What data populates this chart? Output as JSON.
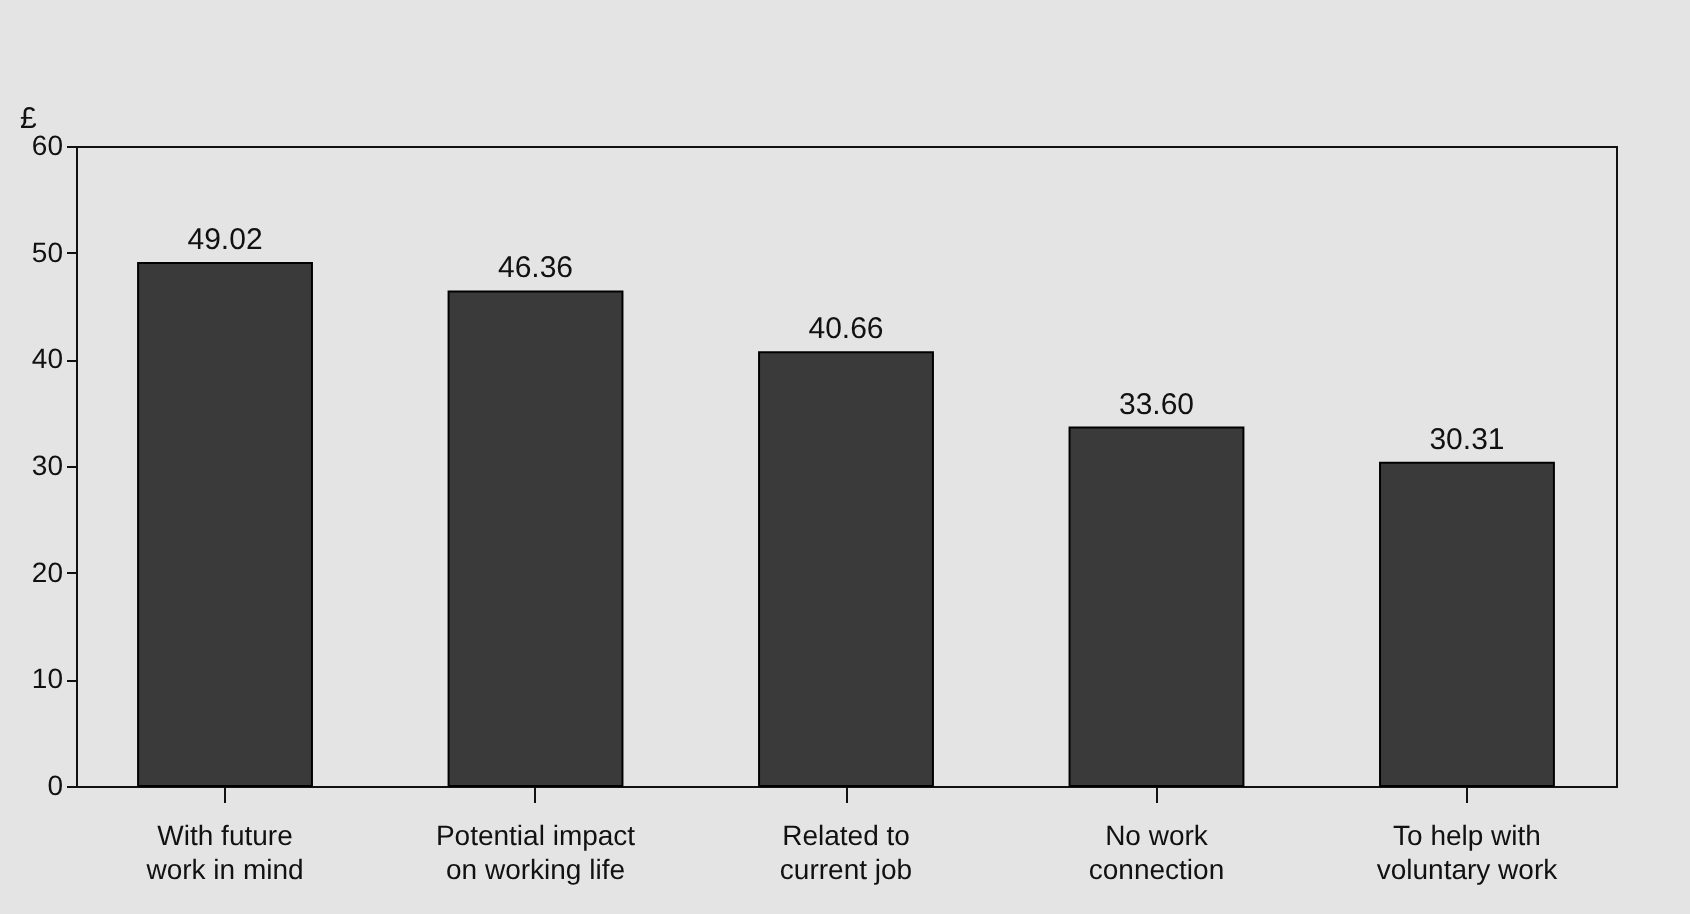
{
  "chart_data": {
    "type": "bar",
    "ylabel": "£",
    "categories": [
      "With future\nwork in mind",
      "Potential impact\non working life",
      "Related to\ncurrent job",
      "No work\nconnection",
      "To help with\nvoluntary work"
    ],
    "values": [
      49.02,
      46.36,
      40.66,
      33.6,
      30.31
    ],
    "value_labels": [
      "49.02",
      "46.36",
      "40.66",
      "33.60",
      "30.31"
    ],
    "color": "#3a3a3a",
    "ylim": [
      0,
      60
    ],
    "yticks": [
      0,
      10,
      20,
      30,
      40,
      50,
      60
    ],
    "grid": false
  }
}
